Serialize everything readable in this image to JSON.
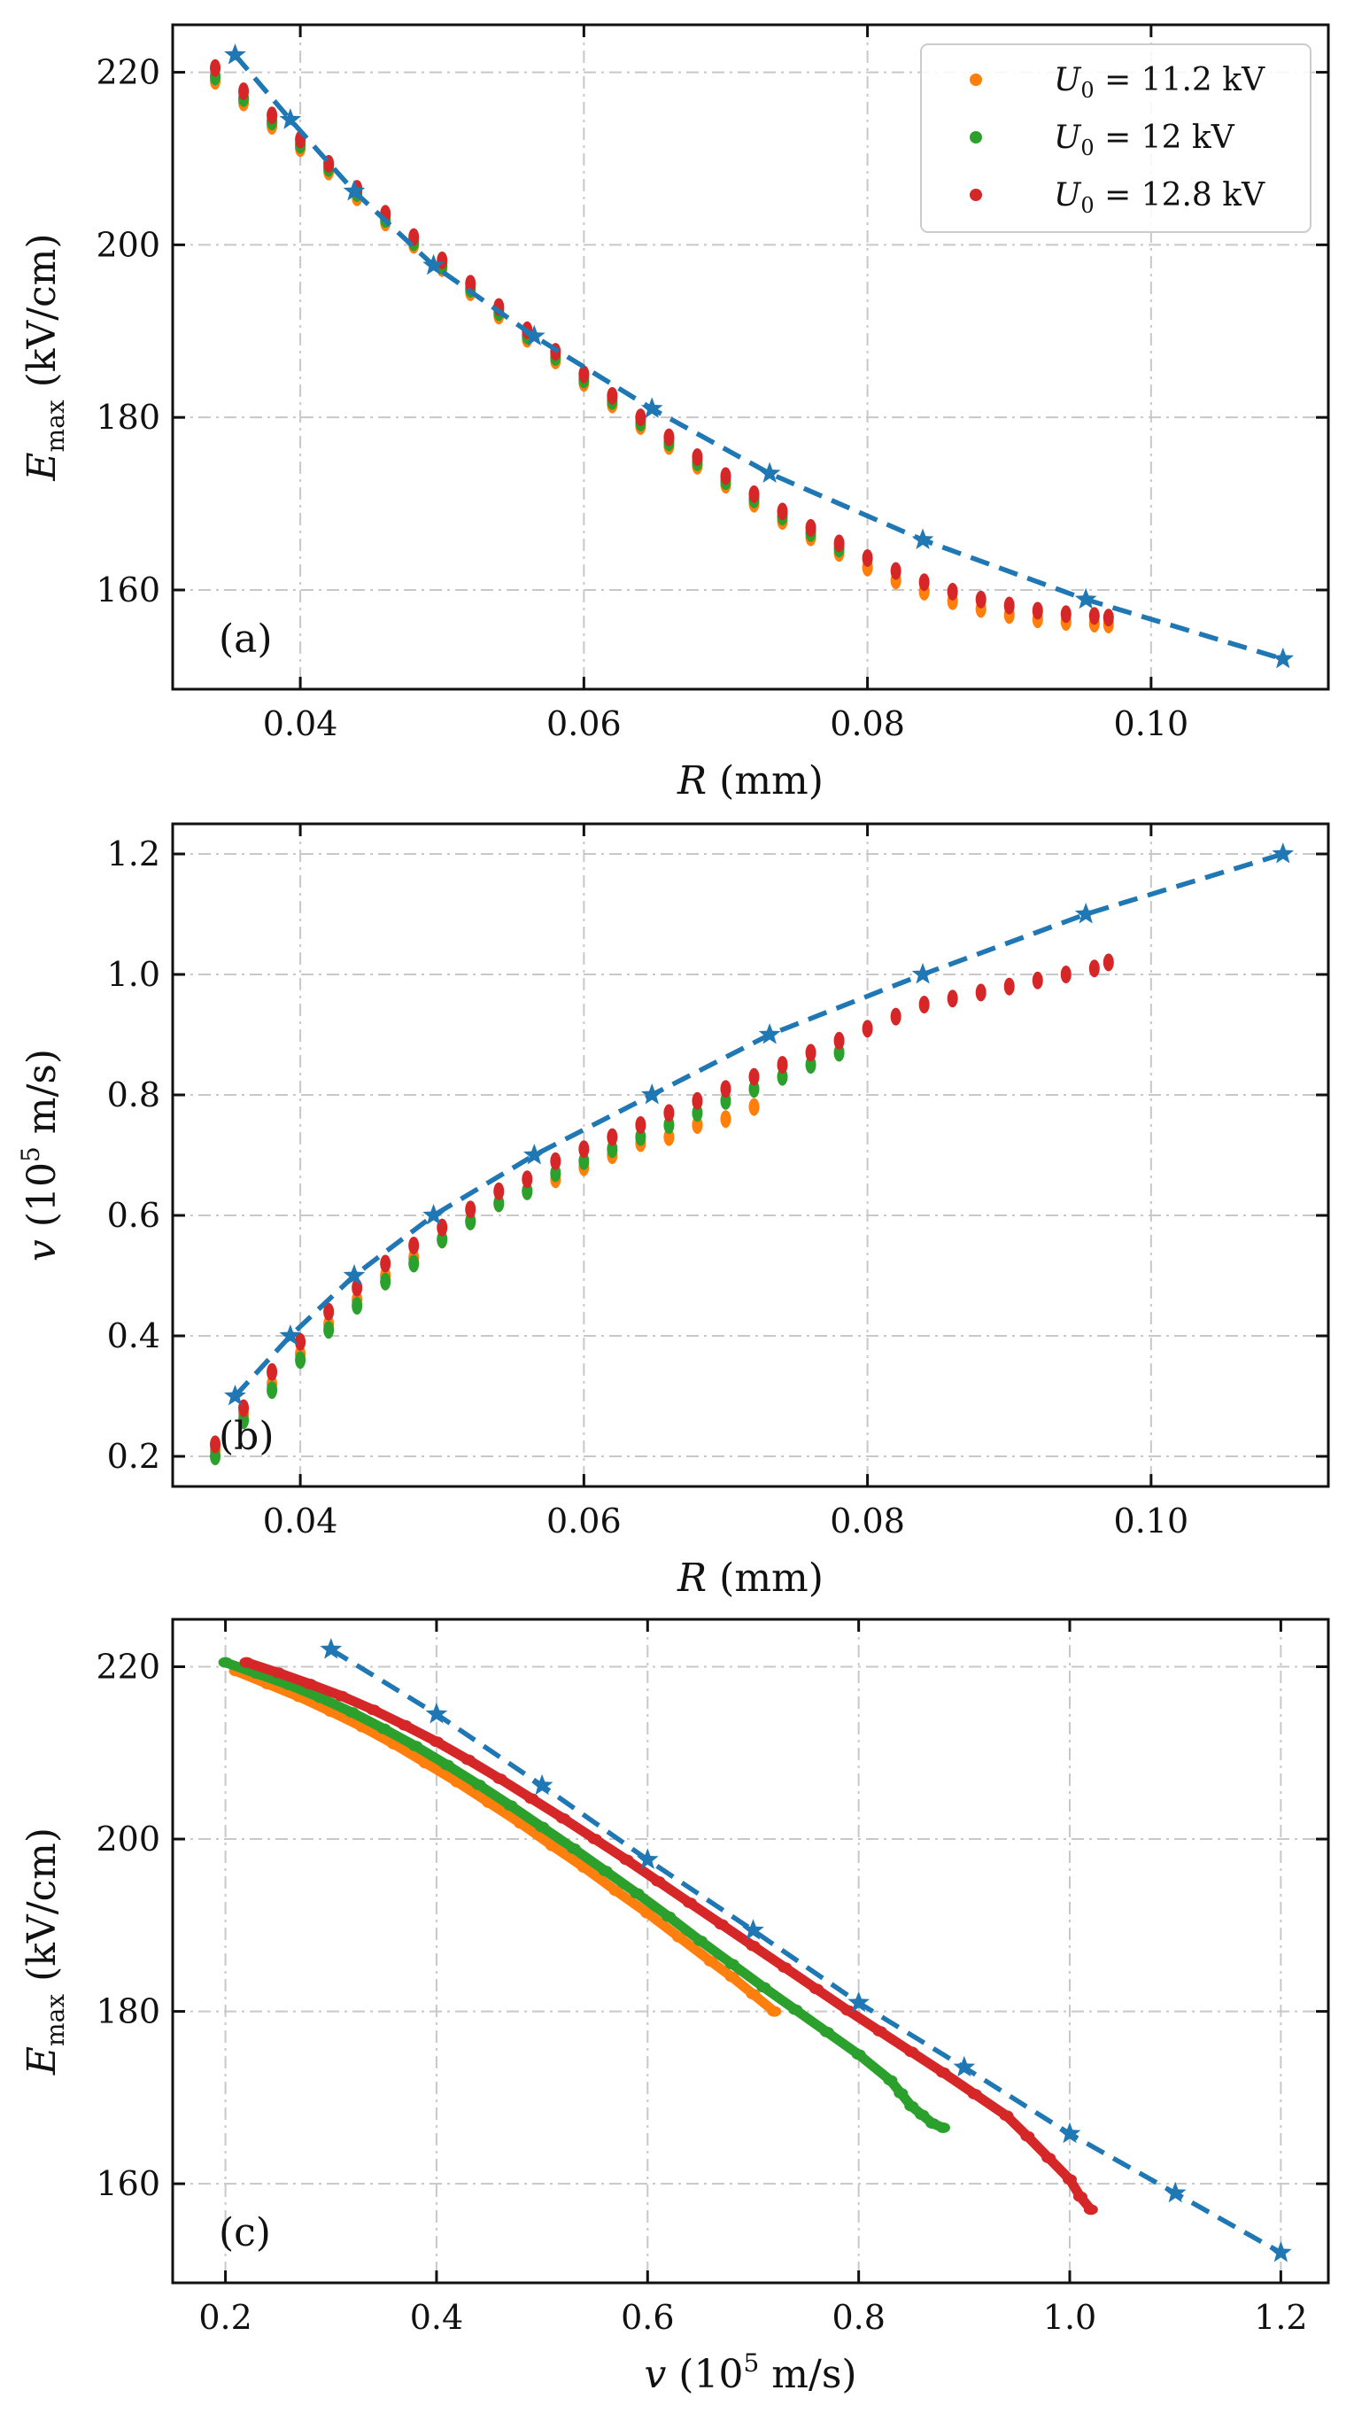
{
  "chart_data": [
    {
      "type": "scatter",
      "panel_label": "(a)",
      "xlabel": {
        "symbol": "R",
        "unit": "(mm)"
      },
      "ylabel": {
        "symbol": "E",
        "sub": "max",
        "unit": "(kV/cm)"
      },
      "xlim": [
        0.031,
        0.1125
      ],
      "ylim": [
        148.5,
        225.5
      ],
      "xticks": [
        0.04,
        0.06,
        0.08,
        0.1
      ],
      "xtick_labels": [
        "0.04",
        "0.06",
        "0.08",
        "0.10"
      ],
      "yticks": [
        160,
        180,
        200,
        220
      ],
      "ytick_labels": [
        "160",
        "180",
        "200",
        "220"
      ],
      "grid": true,
      "legend": {
        "placement": "top-right",
        "entries": [
          {
            "prefix": "U",
            "sub": "0",
            "text": " = 11.2 kV",
            "color": "#ff7f0e"
          },
          {
            "prefix": "U",
            "sub": "0",
            "text": " = 12 kV",
            "color": "#2ca02c"
          },
          {
            "prefix": "U",
            "sub": "0",
            "text": " = 12.8 kV",
            "color": "#d62728"
          }
        ]
      },
      "reference": {
        "color": "#1f77b4",
        "x": [
          0.0354,
          0.0393,
          0.0438,
          0.0494,
          0.0565,
          0.0648,
          0.0731,
          0.0839,
          0.0954,
          0.1093
        ],
        "y": [
          222.0,
          214.5,
          206.2,
          197.6,
          189.4,
          181.0,
          173.5,
          165.8,
          158.9,
          152.0
        ]
      },
      "series": [
        {
          "name": "U0 = 11.2 kV",
          "color": "#ff7f0e",
          "x": [
            0.034,
            0.036,
            0.038,
            0.04,
            0.042,
            0.044,
            0.046,
            0.048,
            0.05,
            0.052,
            0.054,
            0.056,
            0.058,
            0.06,
            0.062,
            0.064,
            0.066,
            0.068,
            0.07,
            0.072,
            0.074,
            0.076,
            0.078,
            0.08,
            0.082,
            0.084,
            0.086,
            0.088,
            0.09,
            0.092,
            0.094,
            0.096,
            0.097
          ],
          "y": [
            219.0,
            216.5,
            213.8,
            211.2,
            208.5,
            205.5,
            202.6,
            200.0,
            197.3,
            194.5,
            191.8,
            189.1,
            186.6,
            184.0,
            181.5,
            179.0,
            176.7,
            174.4,
            172.2,
            170.0,
            168.0,
            166.1,
            164.3,
            162.6,
            161.1,
            159.8,
            158.7,
            157.8,
            157.1,
            156.6,
            156.3,
            156.1,
            156.0
          ]
        },
        {
          "name": "U0 = 12 kV",
          "color": "#2ca02c",
          "x": [
            0.034,
            0.036,
            0.038,
            0.04,
            0.042,
            0.044,
            0.046,
            0.048,
            0.05,
            0.052,
            0.054,
            0.056,
            0.058,
            0.06,
            0.062,
            0.064,
            0.066,
            0.068,
            0.07,
            0.072,
            0.074,
            0.076,
            0.078
          ],
          "y": [
            219.5,
            217.0,
            214.3,
            211.6,
            208.9,
            206.0,
            203.0,
            200.3,
            197.6,
            194.9,
            192.2,
            189.5,
            187.0,
            184.4,
            181.9,
            179.4,
            177.1,
            174.8,
            172.6,
            170.5,
            168.5,
            166.6,
            164.8
          ]
        },
        {
          "name": "U0 = 12.8 kV",
          "color": "#d62728",
          "x": [
            0.034,
            0.036,
            0.038,
            0.04,
            0.042,
            0.044,
            0.046,
            0.048,
            0.05,
            0.052,
            0.054,
            0.056,
            0.058,
            0.06,
            0.062,
            0.064,
            0.066,
            0.068,
            0.07,
            0.072,
            0.074,
            0.076,
            0.078,
            0.08,
            0.082,
            0.084,
            0.086,
            0.088,
            0.09,
            0.092,
            0.094,
            0.096,
            0.097
          ],
          "y": [
            220.5,
            217.8,
            215.0,
            212.2,
            209.4,
            206.5,
            203.6,
            200.9,
            198.2,
            195.5,
            192.8,
            190.1,
            187.6,
            185.0,
            182.5,
            180.0,
            177.7,
            175.4,
            173.2,
            171.1,
            169.1,
            167.2,
            165.4,
            163.7,
            162.2,
            160.9,
            159.8,
            158.9,
            158.2,
            157.6,
            157.2,
            157.0,
            156.8
          ]
        }
      ]
    },
    {
      "type": "scatter",
      "panel_label": "(b)",
      "xlabel": {
        "symbol": "R",
        "unit": "(mm)"
      },
      "ylabel": {
        "symbol": "v",
        "prefix": "(10",
        "sup": "5",
        "unit": " m/s)"
      },
      "xlim": [
        0.031,
        0.1125
      ],
      "ylim": [
        0.15,
        1.25
      ],
      "xticks": [
        0.04,
        0.06,
        0.08,
        0.1
      ],
      "xtick_labels": [
        "0.04",
        "0.06",
        "0.08",
        "0.10"
      ],
      "yticks": [
        0.2,
        0.4,
        0.6,
        0.8,
        1.0,
        1.2
      ],
      "ytick_labels": [
        "0.2",
        "0.4",
        "0.6",
        "0.8",
        "1.0",
        "1.2"
      ],
      "grid": true,
      "reference": {
        "color": "#1f77b4",
        "x": [
          0.0354,
          0.0393,
          0.0438,
          0.0494,
          0.0565,
          0.0648,
          0.0731,
          0.0839,
          0.0954,
          0.1093
        ],
        "y": [
          0.3,
          0.4,
          0.5,
          0.6,
          0.7,
          0.8,
          0.9,
          1.0,
          1.1,
          1.2
        ]
      },
      "series": [
        {
          "name": "U0 = 11.2 kV",
          "color": "#ff7f0e",
          "x": [
            0.034,
            0.036,
            0.038,
            0.04,
            0.042,
            0.044,
            0.046,
            0.048,
            0.05,
            0.052,
            0.054,
            0.056,
            0.058,
            0.06,
            0.062,
            0.064,
            0.066,
            0.068,
            0.07,
            0.072
          ],
          "y": [
            0.21,
            0.27,
            0.32,
            0.37,
            0.42,
            0.46,
            0.5,
            0.53,
            0.56,
            0.59,
            0.62,
            0.64,
            0.66,
            0.68,
            0.7,
            0.72,
            0.73,
            0.75,
            0.76,
            0.78
          ]
        },
        {
          "name": "U0 = 12 kV",
          "color": "#2ca02c",
          "x": [
            0.034,
            0.036,
            0.038,
            0.04,
            0.042,
            0.044,
            0.046,
            0.048,
            0.05,
            0.052,
            0.054,
            0.056,
            0.058,
            0.06,
            0.062,
            0.064,
            0.066,
            0.068,
            0.07,
            0.072,
            0.074,
            0.076,
            0.078
          ],
          "y": [
            0.2,
            0.26,
            0.31,
            0.36,
            0.41,
            0.45,
            0.49,
            0.52,
            0.56,
            0.59,
            0.62,
            0.64,
            0.67,
            0.69,
            0.71,
            0.73,
            0.75,
            0.77,
            0.79,
            0.81,
            0.83,
            0.85,
            0.87
          ]
        },
        {
          "name": "U0 = 12.8 kV",
          "color": "#d62728",
          "x": [
            0.034,
            0.036,
            0.038,
            0.04,
            0.042,
            0.044,
            0.046,
            0.048,
            0.05,
            0.052,
            0.054,
            0.056,
            0.058,
            0.06,
            0.062,
            0.064,
            0.066,
            0.068,
            0.07,
            0.072,
            0.074,
            0.076,
            0.078,
            0.08,
            0.082,
            0.084,
            0.086,
            0.088,
            0.09,
            0.092,
            0.094,
            0.096,
            0.097
          ],
          "y": [
            0.22,
            0.28,
            0.34,
            0.39,
            0.44,
            0.48,
            0.52,
            0.55,
            0.58,
            0.61,
            0.64,
            0.66,
            0.69,
            0.71,
            0.73,
            0.75,
            0.77,
            0.79,
            0.81,
            0.83,
            0.85,
            0.87,
            0.89,
            0.91,
            0.93,
            0.95,
            0.96,
            0.97,
            0.98,
            0.99,
            1.0,
            1.01,
            1.02
          ]
        }
      ]
    },
    {
      "type": "scatter",
      "panel_label": "(c)",
      "xlabel": {
        "symbol": "v",
        "prefix": "(10",
        "sup": "5",
        "unit": " m/s)"
      },
      "ylabel": {
        "symbol": "E",
        "sub": "max",
        "unit": "(kV/cm)"
      },
      "xlim": [
        0.15,
        1.245
      ],
      "ylim": [
        148.5,
        225.5
      ],
      "xticks": [
        0.2,
        0.4,
        0.6,
        0.8,
        1.0,
        1.2
      ],
      "xtick_labels": [
        "0.2",
        "0.4",
        "0.6",
        "0.8",
        "1.0",
        "1.2"
      ],
      "yticks": [
        160,
        180,
        200,
        220
      ],
      "ytick_labels": [
        "160",
        "180",
        "200",
        "220"
      ],
      "grid": true,
      "reference": {
        "color": "#1f77b4",
        "x": [
          0.3,
          0.4,
          0.5,
          0.6,
          0.7,
          0.8,
          0.9,
          1.0,
          1.1,
          1.2
        ],
        "y": [
          222.0,
          214.5,
          206.2,
          197.6,
          189.4,
          181.0,
          173.5,
          165.8,
          158.9,
          152.0
        ]
      },
      "series": [
        {
          "name": "U0 = 11.2 kV",
          "color": "#ff7f0e",
          "x": [
            0.21,
            0.24,
            0.27,
            0.3,
            0.33,
            0.36,
            0.39,
            0.42,
            0.45,
            0.48,
            0.51,
            0.54,
            0.57,
            0.6,
            0.63,
            0.66,
            0.68,
            0.7,
            0.72
          ],
          "y": [
            219.5,
            218.0,
            216.5,
            214.8,
            213.0,
            211.0,
            208.8,
            206.6,
            204.2,
            201.8,
            199.2,
            196.7,
            194.0,
            191.4,
            188.6,
            185.8,
            184.0,
            182.0,
            180.0
          ]
        },
        {
          "name": "U0 = 12 kV",
          "color": "#2ca02c",
          "x": [
            0.2,
            0.23,
            0.26,
            0.29,
            0.32,
            0.35,
            0.38,
            0.41,
            0.44,
            0.47,
            0.5,
            0.53,
            0.56,
            0.59,
            0.62,
            0.65,
            0.68,
            0.71,
            0.74,
            0.77,
            0.8,
            0.83,
            0.84,
            0.85,
            0.86,
            0.87,
            0.88
          ],
          "y": [
            220.5,
            219.2,
            217.9,
            216.4,
            214.7,
            212.8,
            210.8,
            208.6,
            206.3,
            203.9,
            201.4,
            198.9,
            196.3,
            193.7,
            191.0,
            188.2,
            185.5,
            182.8,
            180.2,
            177.6,
            175.0,
            172.0,
            170.5,
            169.0,
            168.0,
            167.0,
            166.5
          ]
        },
        {
          "name": "U0 = 12.8 kV",
          "color": "#d62728",
          "x": [
            0.22,
            0.25,
            0.28,
            0.31,
            0.34,
            0.37,
            0.4,
            0.43,
            0.46,
            0.49,
            0.52,
            0.55,
            0.58,
            0.61,
            0.64,
            0.67,
            0.7,
            0.73,
            0.76,
            0.79,
            0.82,
            0.85,
            0.88,
            0.91,
            0.94,
            0.96,
            0.98,
            1.0,
            1.01,
            1.02
          ],
          "y": [
            220.5,
            219.3,
            218.0,
            216.6,
            215.0,
            213.2,
            211.3,
            209.2,
            207.0,
            204.7,
            202.4,
            200.0,
            197.6,
            195.1,
            192.6,
            190.1,
            187.6,
            185.1,
            182.6,
            180.1,
            177.7,
            175.3,
            172.9,
            170.4,
            167.9,
            165.5,
            163.0,
            160.5,
            158.5,
            157.0
          ]
        }
      ]
    }
  ]
}
